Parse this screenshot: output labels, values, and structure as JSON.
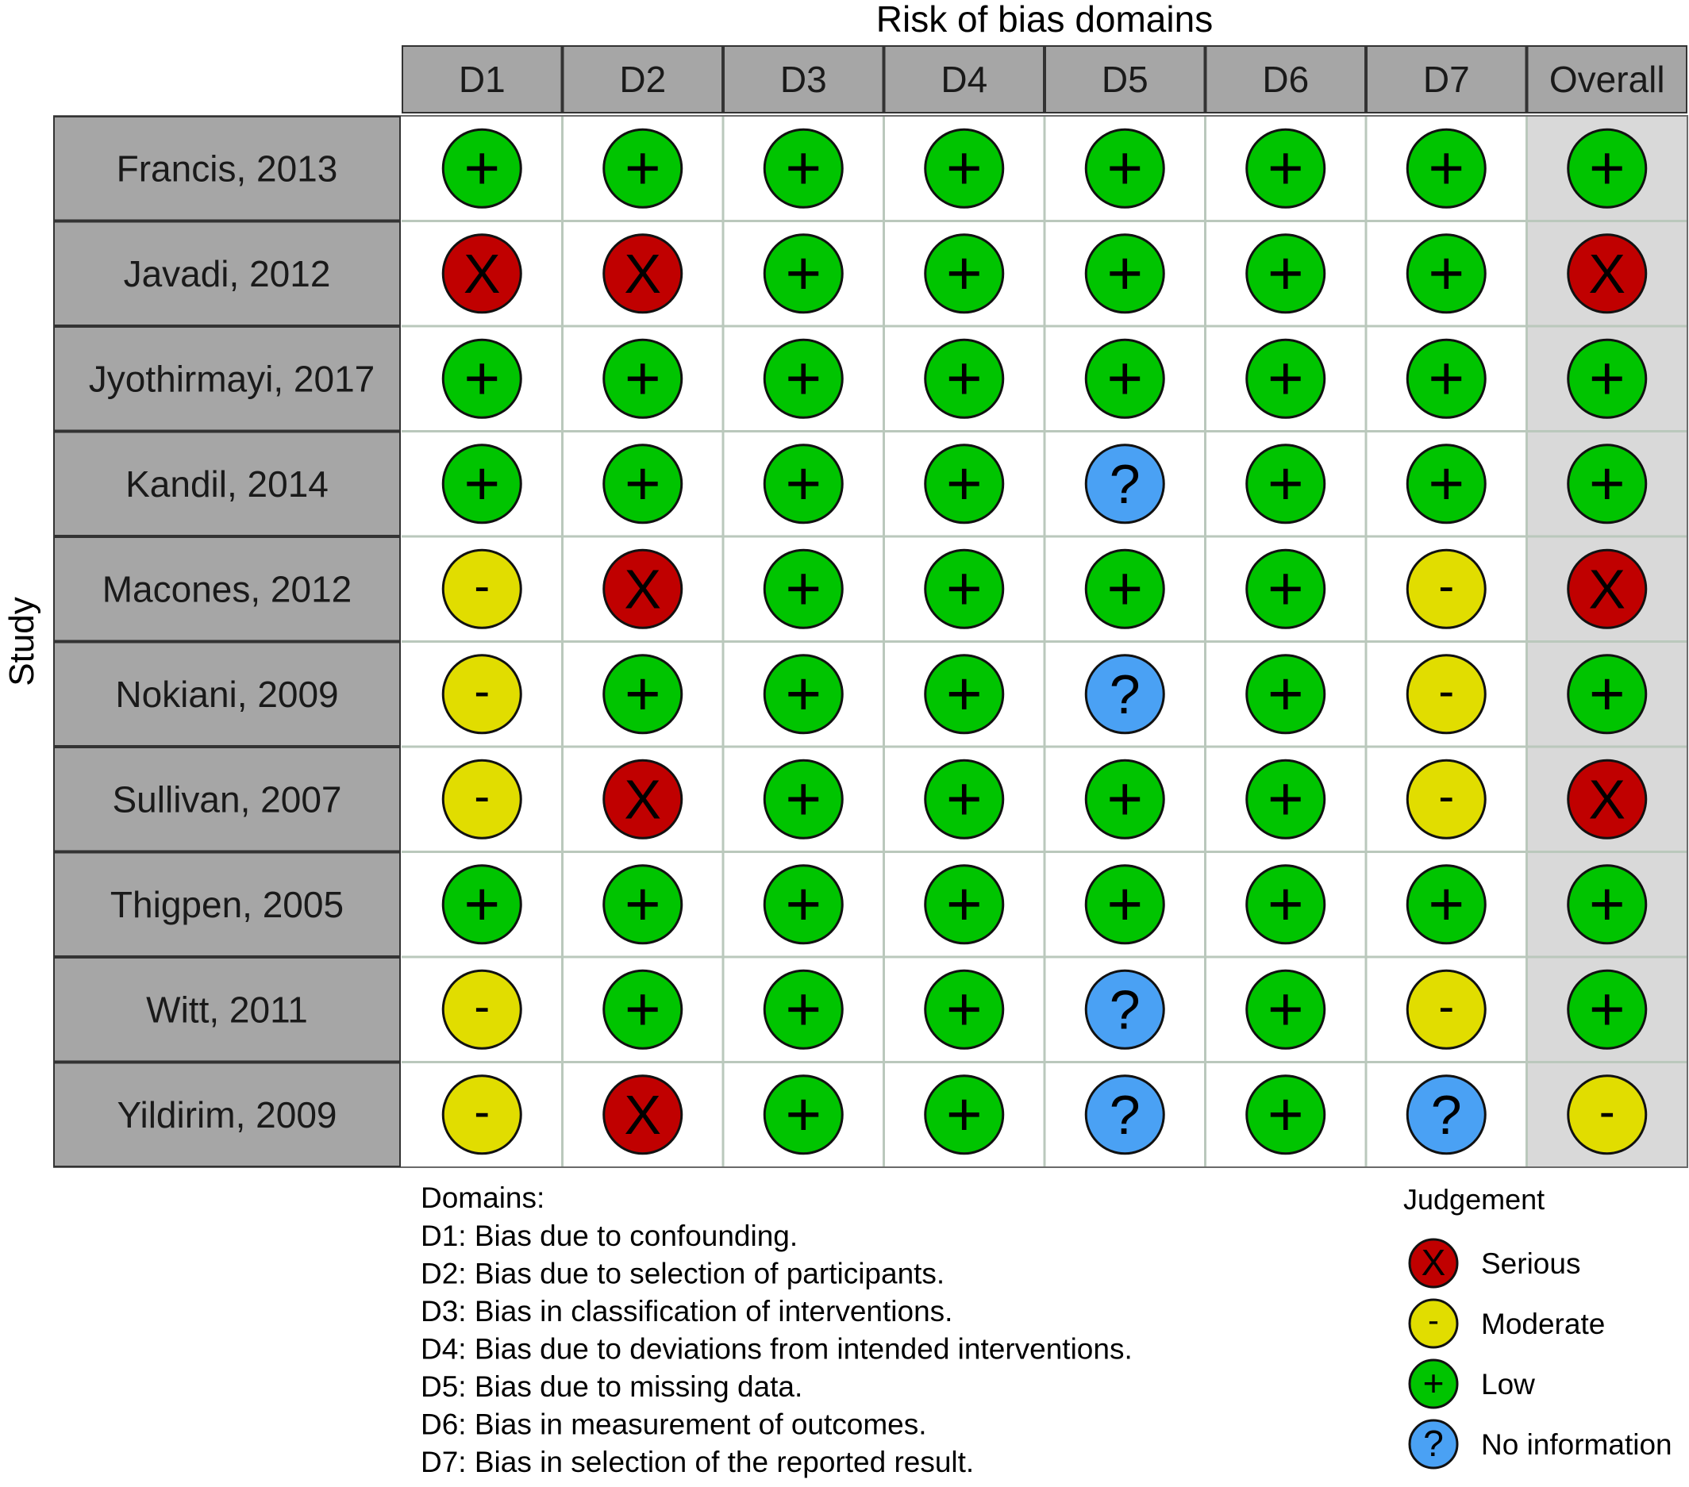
{
  "chart_data": {
    "type": "table",
    "title": "Risk of bias domains",
    "ylabel": "Study",
    "columns": [
      "D1",
      "D2",
      "D3",
      "D4",
      "D5",
      "D6",
      "D7",
      "Overall"
    ],
    "studies": [
      {
        "name": "Francis, 2013",
        "judgements": [
          "Low",
          "Low",
          "Low",
          "Low",
          "Low",
          "Low",
          "Low",
          "Low"
        ]
      },
      {
        "name": "Javadi, 2012",
        "judgements": [
          "Serious",
          "Serious",
          "Low",
          "Low",
          "Low",
          "Low",
          "Low",
          "Serious"
        ]
      },
      {
        "name": "Jyothirmayi, 2017",
        "judgements": [
          "Low",
          "Low",
          "Low",
          "Low",
          "Low",
          "Low",
          "Low",
          "Low"
        ]
      },
      {
        "name": "Kandil, 2014",
        "judgements": [
          "Low",
          "Low",
          "Low",
          "Low",
          "No information",
          "Low",
          "Low",
          "Low"
        ]
      },
      {
        "name": "Macones, 2012",
        "judgements": [
          "Moderate",
          "Serious",
          "Low",
          "Low",
          "Low",
          "Low",
          "Moderate",
          "Serious"
        ]
      },
      {
        "name": "Nokiani, 2009",
        "judgements": [
          "Moderate",
          "Low",
          "Low",
          "Low",
          "No information",
          "Low",
          "Moderate",
          "Low"
        ]
      },
      {
        "name": "Sullivan, 2007",
        "judgements": [
          "Moderate",
          "Serious",
          "Low",
          "Low",
          "Low",
          "Low",
          "Moderate",
          "Serious"
        ]
      },
      {
        "name": "Thigpen, 2005",
        "judgements": [
          "Low",
          "Low",
          "Low",
          "Low",
          "Low",
          "Low",
          "Low",
          "Low"
        ]
      },
      {
        "name": "Witt, 2011",
        "judgements": [
          "Moderate",
          "Low",
          "Low",
          "Low",
          "No information",
          "Low",
          "Moderate",
          "Low"
        ]
      },
      {
        "name": "Yildirim, 2009",
        "judgements": [
          "Moderate",
          "Serious",
          "Low",
          "Low",
          "No information",
          "Low",
          "No information",
          "Moderate"
        ]
      }
    ],
    "domains_title": "Domains:",
    "domains": [
      "D1: Bias due to confounding.",
      "D2: Bias due to selection of participants.",
      "D3: Bias in classification of interventions.",
      "D4: Bias due to deviations from intended interventions.",
      "D5: Bias due to missing data.",
      "D6: Bias in measurement of outcomes.",
      "D7: Bias in selection of the reported result."
    ],
    "legend_title": "Judgement",
    "legend": [
      {
        "label": "Serious",
        "symbol": "X",
        "color": "#c00000"
      },
      {
        "label": "Moderate",
        "symbol": "-",
        "color": "#e1dd00"
      },
      {
        "label": "Low",
        "symbol": "+",
        "color": "#00c400"
      },
      {
        "label": "No information",
        "symbol": "?",
        "color": "#4aa1f4"
      }
    ],
    "legend_placement": "bottom-right",
    "colors": {
      "header_fill": "#a6a6a6",
      "overall_column_fill": "#d9d9d9",
      "cell_fill": "#ffffff",
      "grid_line": "#bac8bc"
    }
  }
}
